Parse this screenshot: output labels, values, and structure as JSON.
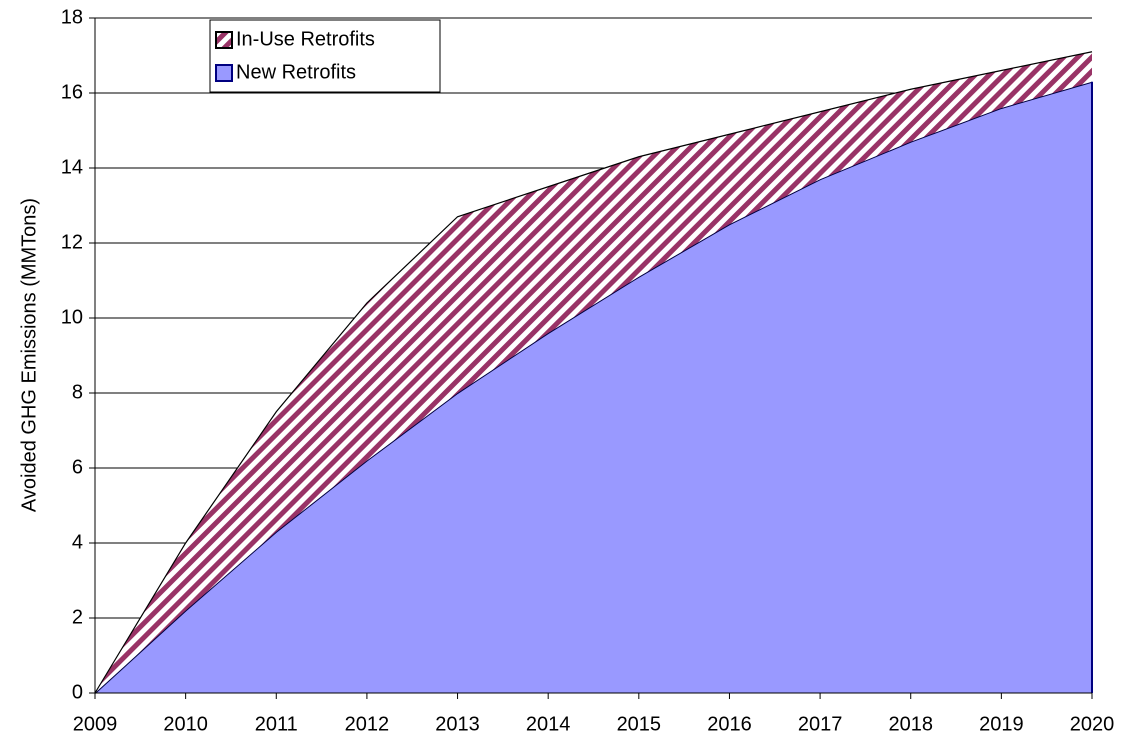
{
  "chart_data": {
    "type": "stacked_area",
    "y_label": "Avoided GHG Emissions (MMTons)",
    "x": [
      2009,
      2010,
      2011,
      2012,
      2013,
      2014,
      2015,
      2016,
      2017,
      2018,
      2019,
      2020
    ],
    "xlim": [
      2009,
      2020
    ],
    "xticks": [
      2009,
      2010,
      2011,
      2012,
      2013,
      2014,
      2015,
      2016,
      2017,
      2018,
      2019,
      2020
    ],
    "ylim": [
      0,
      18
    ],
    "yticks": [
      0,
      2,
      4,
      6,
      8,
      10,
      12,
      14,
      16,
      18
    ],
    "grid": true,
    "legend": "upper left",
    "series": [
      {
        "name": "New Retrofits",
        "color": "#9999ff",
        "values": [
          0,
          2.2,
          4.3,
          6.2,
          8.0,
          9.6,
          11.1,
          12.5,
          13.7,
          14.7,
          15.6,
          16.3
        ]
      },
      {
        "name": "In-Use Retrofits",
        "color": "#993366",
        "values": [
          0,
          1.8,
          3.2,
          4.2,
          4.7,
          3.9,
          3.2,
          2.4,
          1.8,
          1.4,
          1.0,
          0.8
        ]
      }
    ]
  }
}
